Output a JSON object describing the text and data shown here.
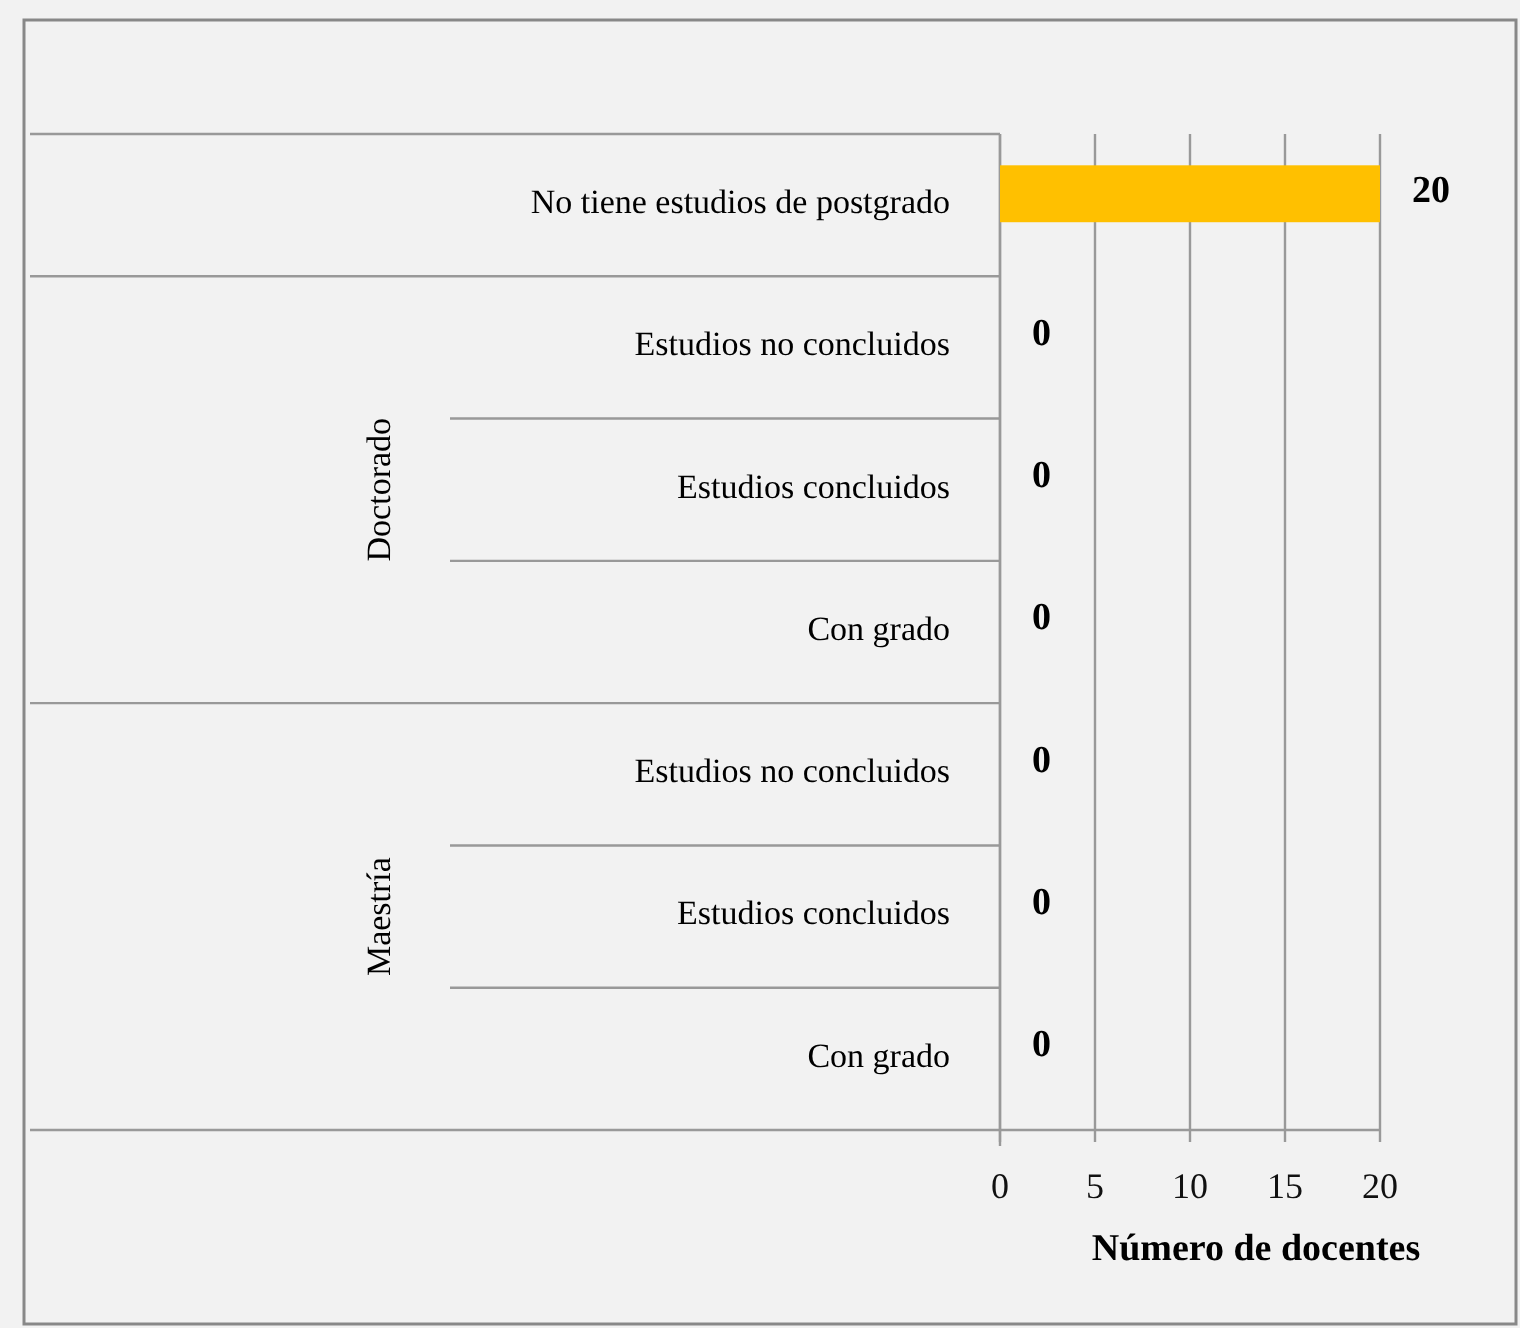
{
  "chart_data": {
    "type": "bar",
    "orientation": "horizontal",
    "xlabel": "Número de docentes",
    "categories": [
      "No tiene estudios de postgrado",
      "Estudios no concluidos",
      "Estudios concluidos",
      "Con grado",
      "Estudios no concluidos",
      "Estudios concluidos",
      "Con grado"
    ],
    "values": [
      20,
      0,
      0,
      0,
      0,
      0,
      0
    ],
    "colors": [
      "#ffc000",
      "#1f6f8b",
      "#1f6f8b",
      "#1f6f8b",
      "#1f6f8b",
      "#1f6f8b",
      "#1f6f8b"
    ],
    "annotations": [
      "Doctorado",
      "Maestría"
    ],
    "xlim": [
      0,
      20
    ],
    "xticks": [
      0,
      5,
      10,
      15,
      20
    ],
    "grid": "x",
    "data_labels": true
  }
}
